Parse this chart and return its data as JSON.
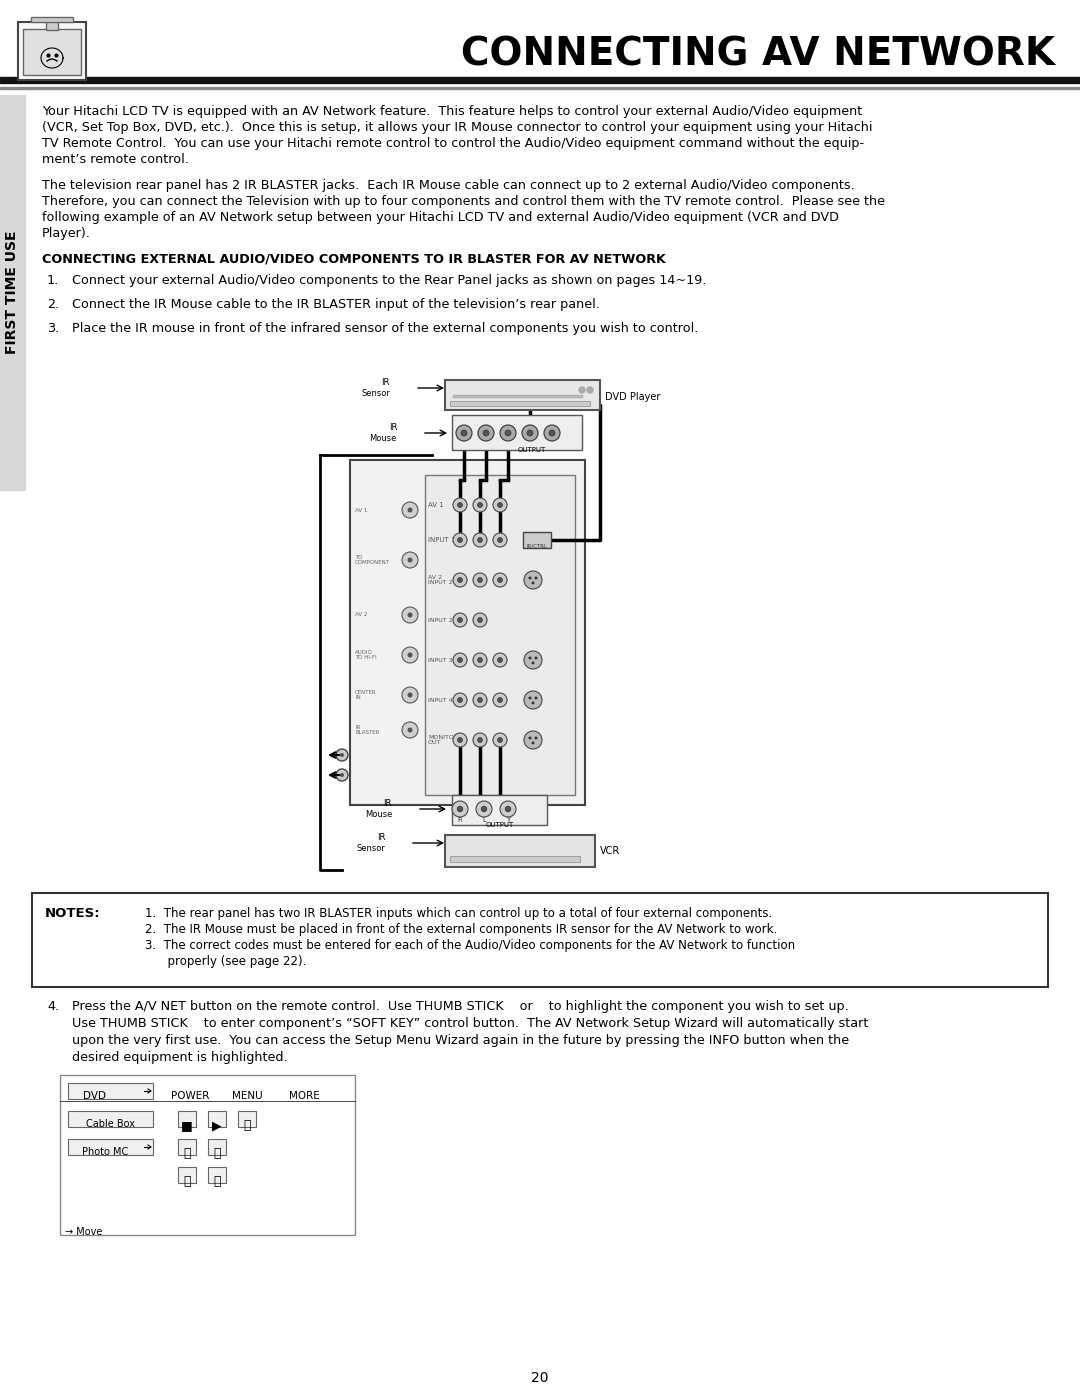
{
  "page_title": "CONNECTING AV NETWORK",
  "page_number": "20",
  "sidebar_text": "FIRST TIME USE",
  "para1_lines": [
    "Your Hitachi LCD TV is equipped with an AV Network feature.  This feature helps to control your external Audio/Video equipment",
    "(VCR, Set Top Box, DVD, etc.).  Once this is setup, it allows your IR Mouse connector to control your equipment using your Hitachi",
    "TV Remote Control.  You can use your Hitachi remote control to control the Audio/Video equipment command without the equip-",
    "ment’s remote control."
  ],
  "para2_lines": [
    "The television rear panel has 2 IR BLASTER jacks.  Each IR Mouse cable can connect up to 2 external Audio/Video components.",
    "Therefore, you can connect the Television with up to four components and control them with the TV remote control.  Please see the",
    "following example of an AV Network setup between your Hitachi LCD TV and external Audio/Video equipment (VCR and DVD",
    "Player)."
  ],
  "section_title": "CONNECTING EXTERNAL AUDIO/VIDEO COMPONENTS TO IR BLASTER FOR AV NETWORK",
  "step1": "Connect your external Audio/Video components to the Rear Panel jacks as shown on pages 14~19.",
  "step2": "Connect the IR Mouse cable to the IR BLASTER input of the television’s rear panel.",
  "step3": "Place the IR mouse in front of the infrared sensor of the external components you wish to control.",
  "notes_title": "NOTES:",
  "note1": "1.  The rear panel has two IR BLASTER inputs which can control up to a total of four external components.",
  "note2": "2.  The IR Mouse must be placed in front of the external components IR sensor for the AV Network to work.",
  "note3a": "3.  The correct codes must be entered for each of the Audio/Video components for the AV Network to function",
  "note3b": "      properly (see page 22).",
  "step4_lines": [
    "Press the A/V NET button on the remote control.  Use THUMB STICK    or    to highlight the component you wish to set up.",
    "Use THUMB STICK    to enter component’s “SOFT KEY” control button.  The AV Network Setup Wizard will automatically start",
    "upon the very first use.  You can access the Setup Menu Wizard again in the future by pressing the INFO button when the",
    "desired equipment is highlighted."
  ],
  "bg_color": "#ffffff",
  "text_color": "#000000"
}
